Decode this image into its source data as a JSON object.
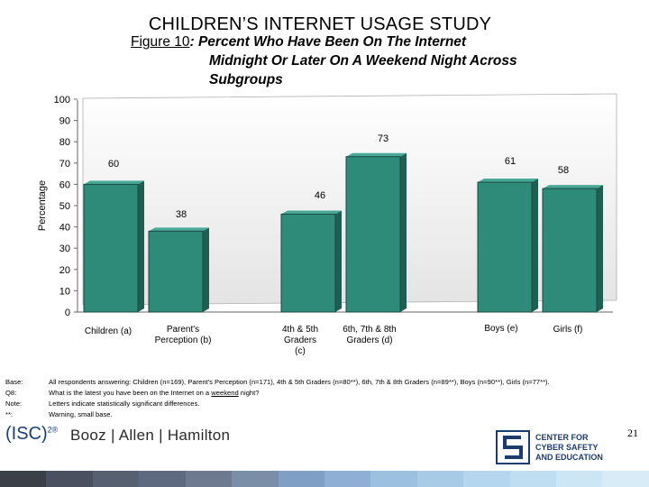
{
  "slide_title": "CHILDREN’S INTERNET USAGE STUDY",
  "figure_title": {
    "label": "Figure 10",
    "text_line1": ": Percent Who Have Been On The Internet",
    "text_line2": "Midnight Or Later On A Weekend Night Across",
    "text_line3": "Subgroups"
  },
  "chart_data": {
    "type": "bar",
    "categories": [
      "Children (a)",
      "Parent's Perception (b)",
      "4th & 5th Graders (c)",
      "6th, 7th & 8th Graders (d)",
      "Boys (e)",
      "Girls (f)"
    ],
    "category_lines": [
      [
        "Children (a)"
      ],
      [
        "Parent's",
        "Perception (b)"
      ],
      [
        "4th & 5th",
        "Graders",
        "(c)"
      ],
      [
        "6th, 7th & 8th",
        "Graders (d)"
      ],
      [
        "Boys (e)"
      ],
      [
        "Girls (f)"
      ]
    ],
    "values": [
      60,
      38,
      46,
      73,
      61,
      58
    ],
    "data_labels": [
      "60",
      "38",
      "46",
      "73",
      "61",
      "58"
    ],
    "ylabel": "Percentage",
    "ylim": [
      0,
      100
    ],
    "yticks": [
      "0",
      "10",
      "20",
      "30",
      "40",
      "50",
      "60",
      "70",
      "80",
      "90",
      "100"
    ],
    "grid": false,
    "bar_color": "#2e8b7a"
  },
  "notes": [
    {
      "key": "Base:",
      "value": "All respondents answering: Children (n=169), Parent's Perception (n=171), 4th & 5th Graders (n=80**), 6th, 7th & 8th Graders (n=89**), Boys (n=90**), Girls (n=77**)."
    },
    {
      "key": "Q8:",
      "value_pre": "What is the latest you have been on the Internet on a ",
      "value_underlined": "weekend",
      "value_post": " night?"
    },
    {
      "key": "Note:",
      "value": "Letters indicate statistically significant differences."
    },
    {
      "key": "**:",
      "value": "Warning, small base."
    }
  ],
  "page_number": "21",
  "logos": {
    "isc2": "(ISC)",
    "isc2_sup": "2®",
    "booz": "Booz | Allen | Hamilton",
    "cyber_line1": "CENTER FOR",
    "cyber_line2": "CYBER SAFETY",
    "cyber_line3": "AND EDUCATION"
  },
  "color_bar": [
    "#3a3f48",
    "#4a5060",
    "#566070",
    "#5e6a80",
    "#6d7a90",
    "#7a8ea8",
    "#7fa0c4",
    "#8fb0d4",
    "#9cc0e0",
    "#a8cce8",
    "#b4d6ee",
    "#c0def2",
    "#cce6f6",
    "#d8ecf8"
  ]
}
